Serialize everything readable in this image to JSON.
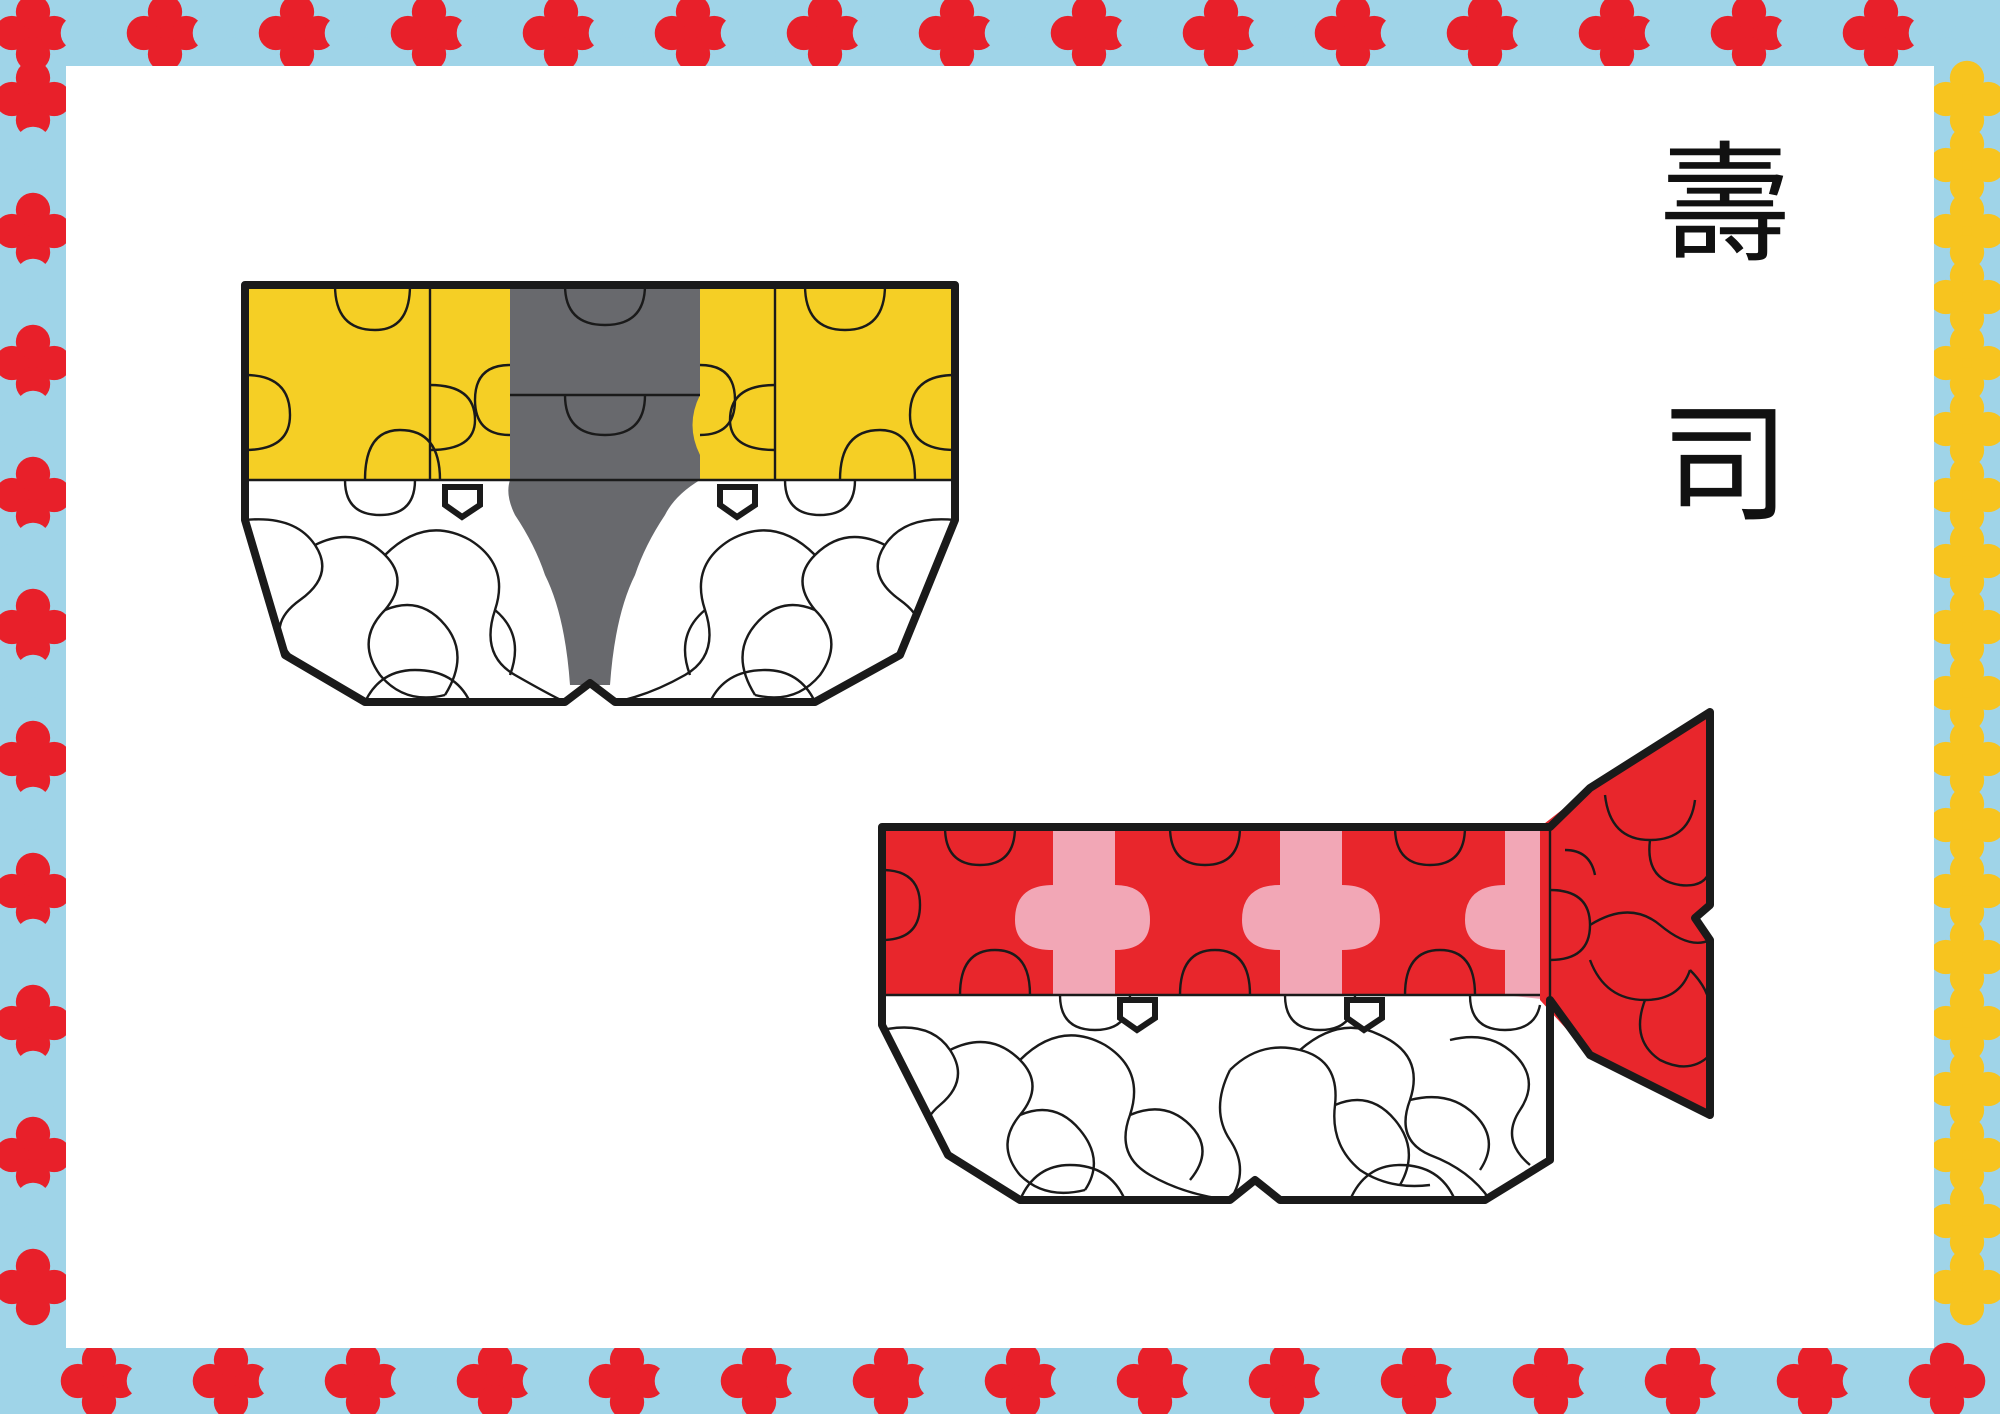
{
  "title": {
    "chars": [
      "壽",
      "司"
    ]
  },
  "colors": {
    "border_red": "#e8202a",
    "border_yellow": "#f7c41f",
    "border_blue": "#9fd4e8",
    "tamago_yellow": "#f5cf25",
    "nori_gray": "#68696d",
    "maguro_red": "#e8262c",
    "maguro_pink": "#f2a7b6",
    "rice_white": "#ffffff",
    "outline": "#1a1a1a"
  },
  "pieces": [
    {
      "name": "tamago-nigiri",
      "topping": "tamago",
      "topping_color": "#f5cf25",
      "band_color": "#68696d"
    },
    {
      "name": "maguro-nigiri",
      "topping": "maguro",
      "topping_color": "#e8262c",
      "accent_color": "#f2a7b6"
    }
  ],
  "icons": {
    "border": "puzzle-pattern-border",
    "tamago": "tamago-sushi-icon",
    "maguro": "maguro-sushi-icon"
  }
}
